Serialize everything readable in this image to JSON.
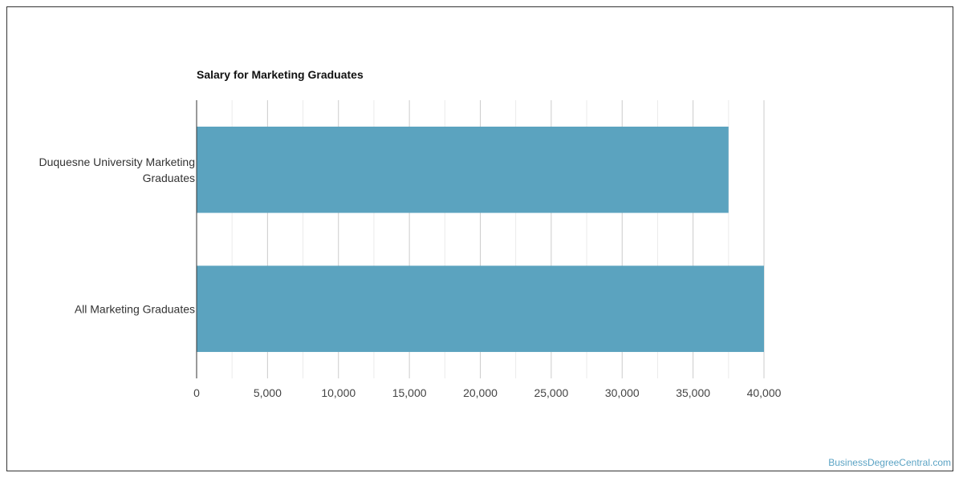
{
  "chart_data": {
    "type": "bar",
    "orientation": "horizontal",
    "title": "Salary for Marketing Graduates",
    "categories": [
      [
        "Duquesne University Marketing",
        "Graduates"
      ],
      [
        "All Marketing Graduates"
      ]
    ],
    "values": [
      37500,
      40000
    ],
    "xlim": [
      0,
      40000
    ],
    "ticks": [
      0,
      5000,
      10000,
      15000,
      20000,
      25000,
      30000,
      35000,
      40000
    ],
    "tick_labels": [
      "0",
      "5,000",
      "10,000",
      "15,000",
      "20,000",
      "25,000",
      "30,000",
      "35,000",
      "40,000"
    ],
    "grid": true,
    "bar_color": "#5ba3bf",
    "xlabel": "",
    "ylabel": ""
  },
  "watermark": "BusinessDegreeCentral.com"
}
